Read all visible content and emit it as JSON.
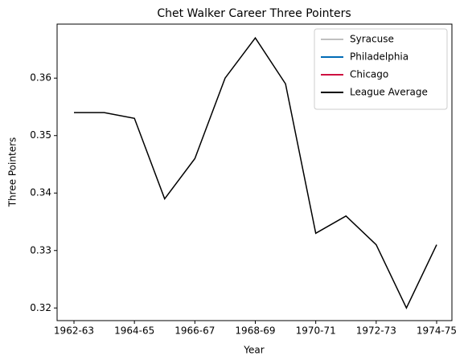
{
  "chart_data": {
    "type": "line",
    "title": "Chet Walker Career Three Pointers",
    "xlabel": "Year",
    "ylabel": "Three Pointers",
    "categories": [
      "1962-63",
      null,
      "1964-65",
      null,
      "1966-67",
      null,
      "1968-69",
      null,
      "1970-71",
      null,
      "1972-73",
      null,
      "1974-75"
    ],
    "series": [
      {
        "name": "Syracuse",
        "color": "#c0c0c0",
        "values": [
          null,
          null,
          null,
          null,
          null,
          null,
          null,
          null,
          null,
          null,
          null,
          null,
          null
        ]
      },
      {
        "name": "Philadelphia",
        "color": "#006bb6",
        "values": [
          null,
          null,
          null,
          null,
          null,
          null,
          null,
          null,
          null,
          null,
          null,
          null,
          null
        ]
      },
      {
        "name": "Chicago",
        "color": "#ce1141",
        "values": [
          null,
          null,
          null,
          null,
          null,
          null,
          null,
          null,
          null,
          null,
          null,
          null,
          null
        ]
      },
      {
        "name": "League Average",
        "color": "#000000",
        "values": [
          0.354,
          0.354,
          0.353,
          0.339,
          0.346,
          0.36,
          0.367,
          0.359,
          0.333,
          0.336,
          0.331,
          0.32,
          0.331
        ]
      }
    ],
    "ylim": [
      0.3178,
      0.3694
    ],
    "yticks": [
      0.32,
      0.33,
      0.34,
      0.35,
      0.36
    ],
    "grid": false,
    "legend": "upper right"
  }
}
